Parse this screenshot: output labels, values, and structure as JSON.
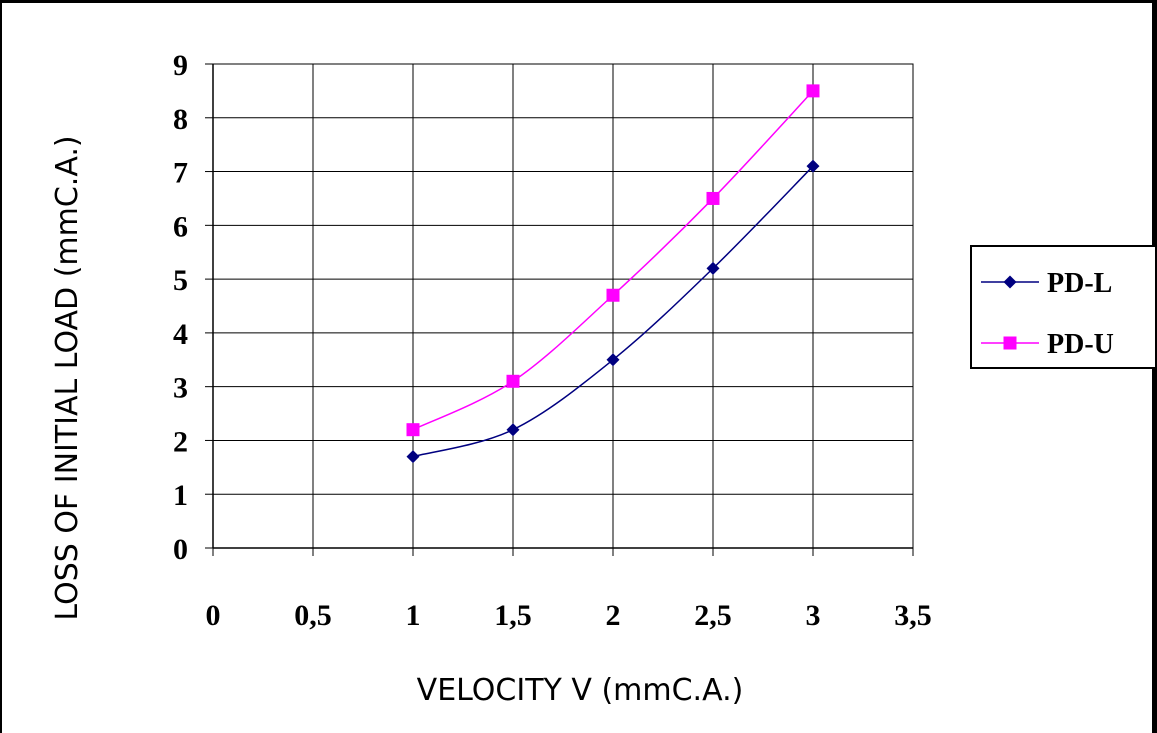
{
  "chart_data": {
    "type": "line",
    "xlabel": "VELOCITY V (mmC.A.)",
    "ylabel": "LOSS OF INITIAL LOAD (mmC.A.)",
    "xlim": [
      0,
      3.5
    ],
    "ylim": [
      0,
      9
    ],
    "x_ticks": [
      "0",
      "0,5",
      "1",
      "1,5",
      "2",
      "2,5",
      "3",
      "3,5"
    ],
    "y_ticks": [
      "0",
      "1",
      "2",
      "3",
      "4",
      "5",
      "6",
      "7",
      "8",
      "9"
    ],
    "grid": true,
    "legend_position": "right",
    "series": [
      {
        "name": "PD-L",
        "color": "#000080",
        "marker": "diamond",
        "x": [
          1,
          1.5,
          2,
          2.5,
          3
        ],
        "y": [
          1.7,
          2.2,
          3.5,
          5.2,
          7.1
        ]
      },
      {
        "name": "PD-U",
        "color": "#ff00ff",
        "marker": "square",
        "x": [
          1,
          1.5,
          2,
          2.5,
          3
        ],
        "y": [
          2.2,
          3.1,
          4.7,
          6.5,
          8.5
        ]
      }
    ]
  }
}
